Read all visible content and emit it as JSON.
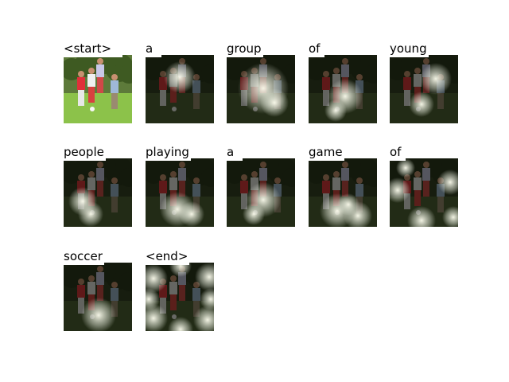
{
  "figure": {
    "words": [
      {
        "text": "<start>",
        "attention": "none"
      },
      {
        "text": "a",
        "attention": "center-upper"
      },
      {
        "text": "group",
        "attention": "center-wide"
      },
      {
        "text": "of",
        "attention": "center-lower"
      },
      {
        "text": "young",
        "attention": "right-upper"
      },
      {
        "text": "people",
        "attention": "left-lower"
      },
      {
        "text": "playing",
        "attention": "bottom"
      },
      {
        "text": "a",
        "attention": "center-lower"
      },
      {
        "text": "game",
        "attention": "bottom-wide"
      },
      {
        "text": "of",
        "attention": "edges"
      },
      {
        "text": "soccer",
        "attention": "bottom-center"
      },
      {
        "text": "<end>",
        "attention": "ring"
      }
    ]
  }
}
